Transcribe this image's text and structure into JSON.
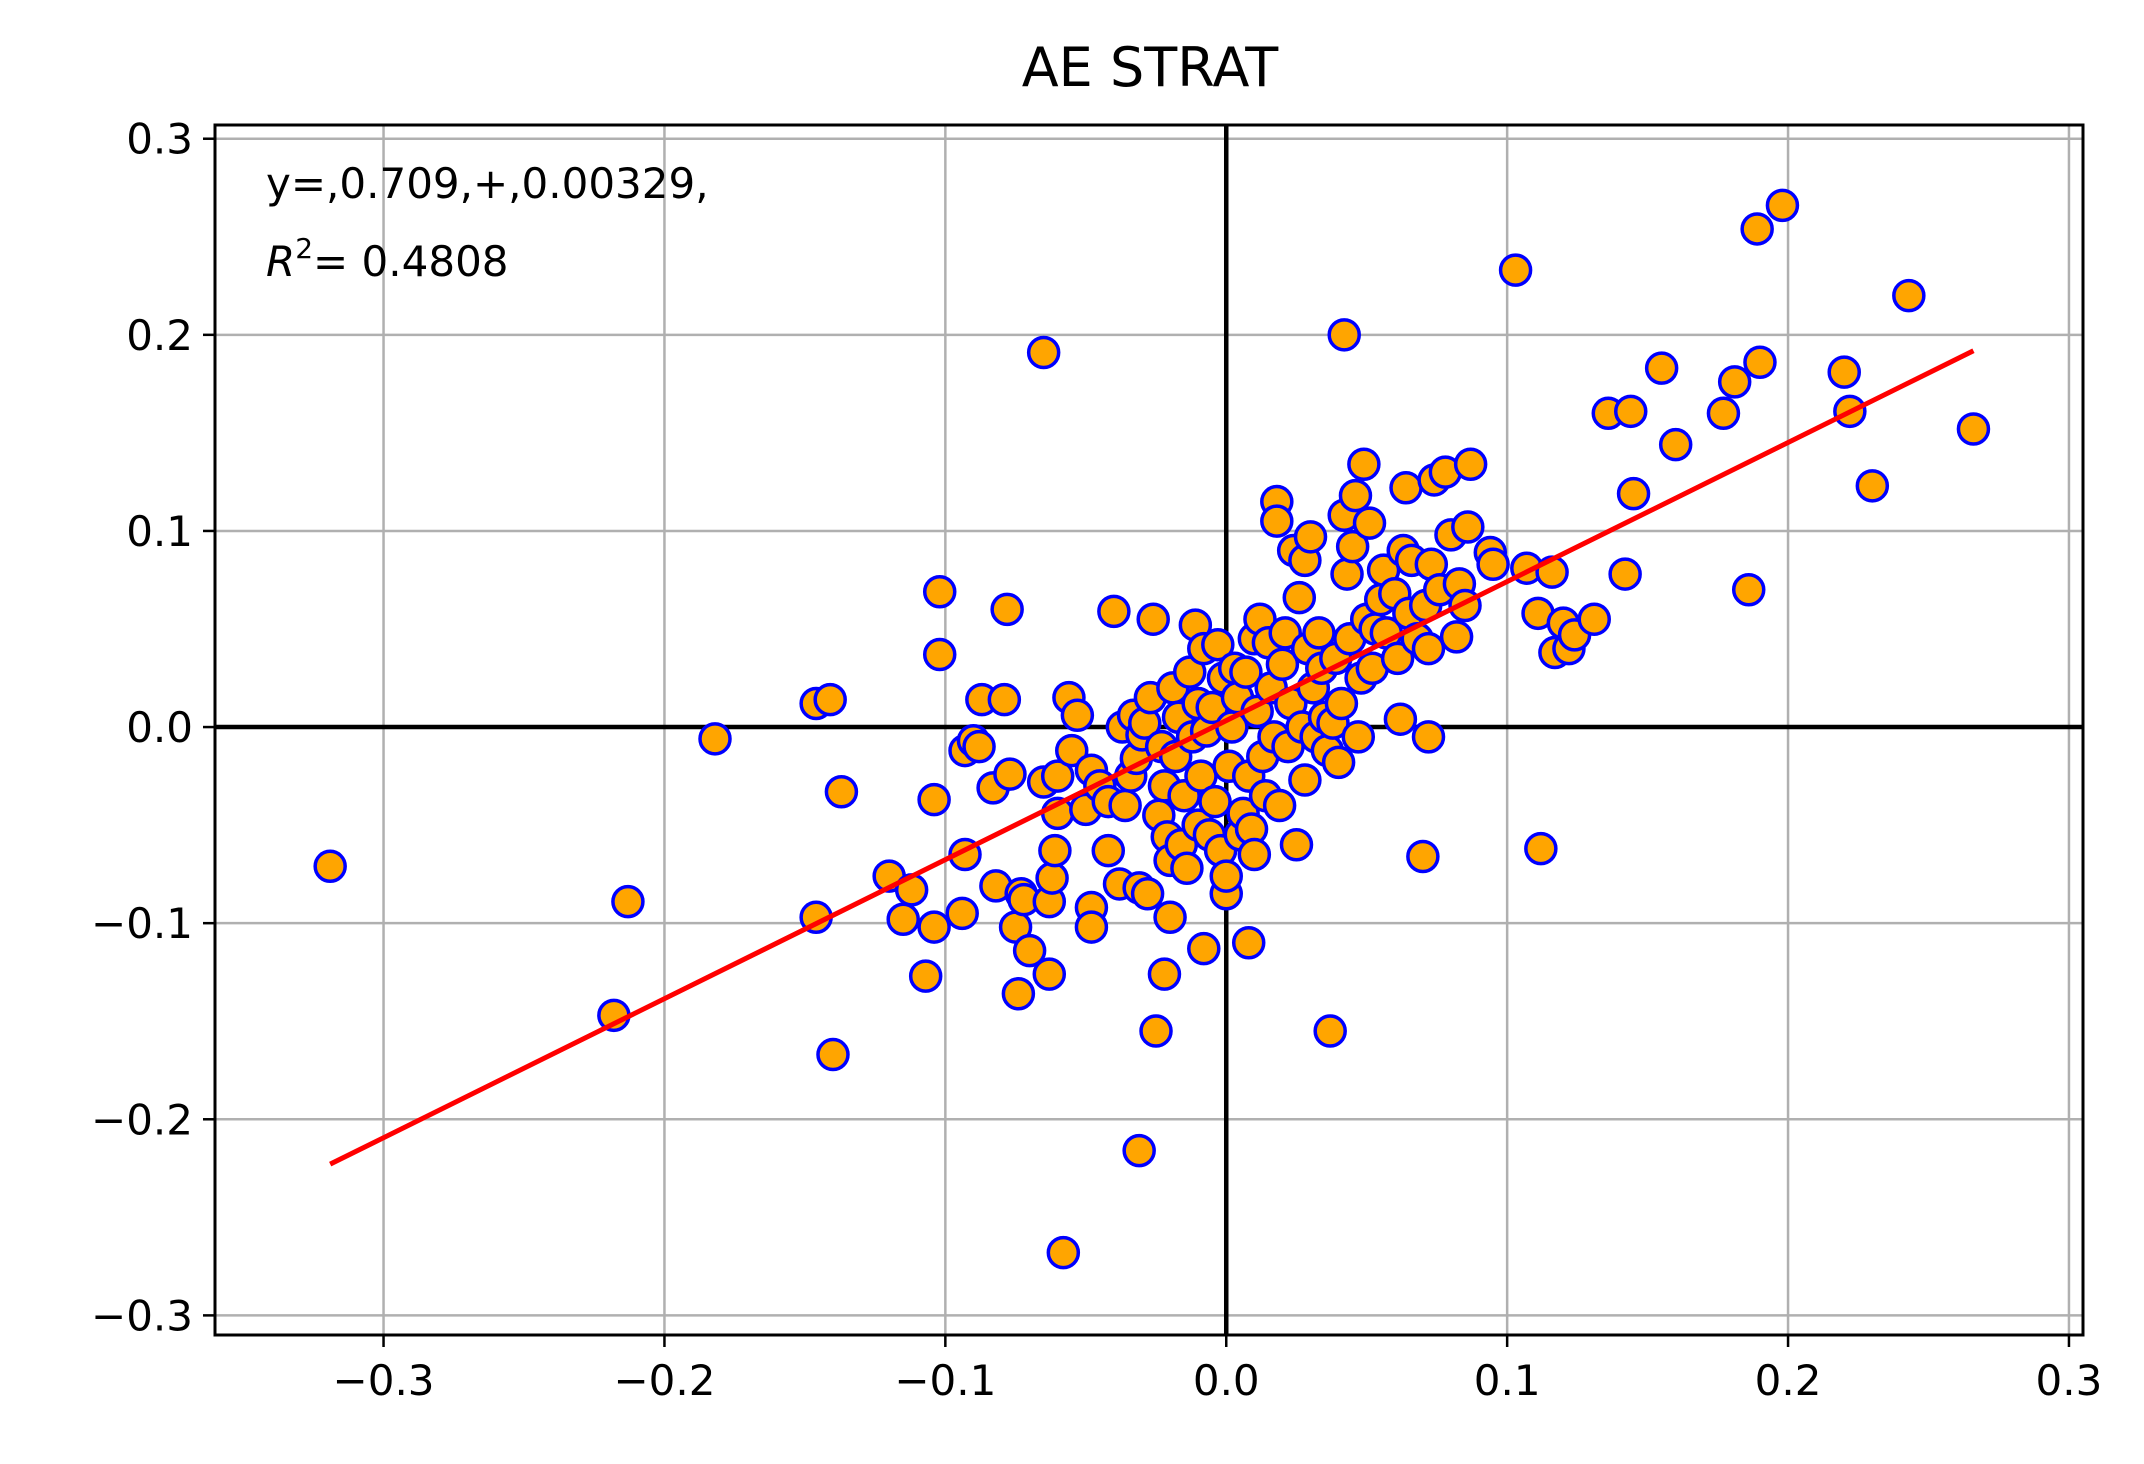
{
  "chart_data": {
    "type": "scatter",
    "title": "AE STRAT",
    "xlabel": "",
    "ylabel": "",
    "xlim": [
      -0.36,
      0.305
    ],
    "ylim": [
      -0.31,
      0.307
    ],
    "x_ticks": [
      -0.3,
      -0.2,
      -0.1,
      0.0,
      0.1,
      0.2,
      0.3
    ],
    "x_tick_labels": [
      "−0.3",
      "−0.2",
      "−0.1",
      "0.0",
      "0.1",
      "0.2",
      "0.3"
    ],
    "y_ticks": [
      -0.3,
      -0.2,
      -0.1,
      0.0,
      0.1,
      0.2,
      0.3
    ],
    "y_tick_labels": [
      "−0.3",
      "−0.2",
      "−0.1",
      "0.0",
      "0.1",
      "0.2",
      "0.3"
    ],
    "grid": true,
    "reference_lines": {
      "x": 0,
      "y": 0,
      "color": "#000000"
    },
    "annotation": {
      "equation": "y=,0.709,+,0.00329,",
      "r2_label": "R",
      "r2_exp": "2",
      "r2_value": "= 0.4808"
    },
    "fit": {
      "slope": 0.709,
      "intercept": 0.00329,
      "x_range": [
        -0.319,
        0.266
      ],
      "color": "#ff0000"
    },
    "marker": {
      "face": "#ffa500",
      "edge": "#0000ff"
    },
    "points": [
      [
        -0.319,
        -0.071
      ],
      [
        -0.218,
        -0.147
      ],
      [
        -0.213,
        -0.089
      ],
      [
        -0.182,
        -0.006
      ],
      [
        -0.146,
        0.012
      ],
      [
        -0.146,
        -0.097
      ],
      [
        -0.141,
        0.014
      ],
      [
        -0.14,
        -0.167
      ],
      [
        -0.137,
        -0.033
      ],
      [
        -0.12,
        -0.076
      ],
      [
        -0.115,
        -0.098
      ],
      [
        -0.112,
        -0.083
      ],
      [
        -0.107,
        -0.127
      ],
      [
        -0.104,
        -0.102
      ],
      [
        -0.104,
        -0.037
      ],
      [
        -0.102,
        0.037
      ],
      [
        -0.102,
        0.069
      ],
      [
        -0.094,
        -0.095
      ],
      [
        -0.093,
        -0.065
      ],
      [
        -0.093,
        -0.012
      ],
      [
        -0.09,
        -0.007
      ],
      [
        -0.088,
        -0.01
      ],
      [
        -0.087,
        0.014
      ],
      [
        -0.083,
        -0.031
      ],
      [
        -0.082,
        -0.081
      ],
      [
        -0.079,
        0.014
      ],
      [
        -0.078,
        0.06
      ],
      [
        -0.077,
        -0.024
      ],
      [
        -0.075,
        -0.102
      ],
      [
        -0.074,
        -0.136
      ],
      [
        -0.073,
        -0.085
      ],
      [
        -0.072,
        -0.088
      ],
      [
        -0.07,
        -0.114
      ],
      [
        -0.065,
        -0.028
      ],
      [
        -0.065,
        0.191
      ],
      [
        -0.063,
        -0.126
      ],
      [
        -0.063,
        -0.089
      ],
      [
        -0.062,
        -0.077
      ],
      [
        -0.061,
        -0.063
      ],
      [
        -0.06,
        -0.044
      ],
      [
        -0.06,
        -0.025
      ],
      [
        -0.058,
        -0.268
      ],
      [
        -0.056,
        0.015
      ],
      [
        -0.055,
        -0.012
      ],
      [
        -0.053,
        0.006
      ],
      [
        -0.05,
        -0.042
      ],
      [
        -0.048,
        -0.022
      ],
      [
        -0.048,
        -0.092
      ],
      [
        -0.048,
        -0.102
      ],
      [
        -0.045,
        -0.03
      ],
      [
        -0.042,
        -0.063
      ],
      [
        -0.042,
        -0.038
      ],
      [
        -0.04,
        0.059
      ],
      [
        -0.038,
        -0.08
      ],
      [
        -0.037,
        0.0
      ],
      [
        -0.036,
        -0.04
      ],
      [
        -0.034,
        -0.025
      ],
      [
        -0.033,
        0.006
      ],
      [
        -0.032,
        -0.016
      ],
      [
        -0.031,
        -0.082
      ],
      [
        -0.031,
        -0.216
      ],
      [
        -0.03,
        -0.004
      ],
      [
        -0.029,
        0.002
      ],
      [
        -0.028,
        -0.085
      ],
      [
        -0.027,
        0.015
      ],
      [
        -0.026,
        0.055
      ],
      [
        -0.025,
        -0.155
      ],
      [
        -0.024,
        -0.045
      ],
      [
        -0.023,
        -0.01
      ],
      [
        -0.022,
        -0.03
      ],
      [
        -0.022,
        -0.126
      ],
      [
        -0.021,
        -0.056
      ],
      [
        -0.02,
        -0.068
      ],
      [
        -0.02,
        -0.097
      ],
      [
        -0.019,
        0.02
      ],
      [
        -0.018,
        -0.015
      ],
      [
        -0.017,
        0.005
      ],
      [
        -0.016,
        -0.06
      ],
      [
        -0.015,
        -0.035
      ],
      [
        -0.014,
        -0.072
      ],
      [
        -0.013,
        0.028
      ],
      [
        -0.012,
        -0.005
      ],
      [
        -0.011,
        0.052
      ],
      [
        -0.01,
        -0.05
      ],
      [
        -0.01,
        0.012
      ],
      [
        -0.009,
        -0.025
      ],
      [
        -0.008,
        -0.113
      ],
      [
        -0.008,
        0.04
      ],
      [
        -0.007,
        -0.002
      ],
      [
        -0.006,
        -0.055
      ],
      [
        -0.005,
        0.01
      ],
      [
        -0.004,
        -0.038
      ],
      [
        -0.003,
        0.042
      ],
      [
        -0.002,
        -0.063
      ],
      [
        -0.001,
        0.025
      ],
      [
        0.0,
        -0.085
      ],
      [
        0.0,
        -0.076
      ],
      [
        0.001,
        -0.02
      ],
      [
        0.002,
        0.0
      ],
      [
        0.003,
        0.03
      ],
      [
        0.004,
        0.015
      ],
      [
        0.005,
        -0.055
      ],
      [
        0.006,
        -0.044
      ],
      [
        0.007,
        0.028
      ],
      [
        0.008,
        -0.11
      ],
      [
        0.008,
        -0.025
      ],
      [
        0.009,
        -0.052
      ],
      [
        0.01,
        0.045
      ],
      [
        0.01,
        -0.065
      ],
      [
        0.011,
        0.008
      ],
      [
        0.012,
        0.055
      ],
      [
        0.013,
        -0.015
      ],
      [
        0.014,
        -0.035
      ],
      [
        0.015,
        0.043
      ],
      [
        0.016,
        0.02
      ],
      [
        0.017,
        -0.005
      ],
      [
        0.018,
        0.115
      ],
      [
        0.018,
        0.105
      ],
      [
        0.019,
        -0.04
      ],
      [
        0.02,
        0.032
      ],
      [
        0.021,
        0.048
      ],
      [
        0.022,
        -0.01
      ],
      [
        0.023,
        0.012
      ],
      [
        0.024,
        0.09
      ],
      [
        0.025,
        -0.06
      ],
      [
        0.026,
        0.066
      ],
      [
        0.027,
        0.0
      ],
      [
        0.028,
        0.085
      ],
      [
        0.028,
        -0.027
      ],
      [
        0.029,
        0.04
      ],
      [
        0.03,
        0.097
      ],
      [
        0.031,
        0.02
      ],
      [
        0.032,
        -0.005
      ],
      [
        0.033,
        0.048
      ],
      [
        0.034,
        0.03
      ],
      [
        0.035,
        0.005
      ],
      [
        0.036,
        -0.012
      ],
      [
        0.037,
        -0.155
      ],
      [
        0.038,
        0.002
      ],
      [
        0.039,
        0.035
      ],
      [
        0.04,
        -0.018
      ],
      [
        0.041,
        0.012
      ],
      [
        0.042,
        0.2
      ],
      [
        0.042,
        0.108
      ],
      [
        0.043,
        0.078
      ],
      [
        0.044,
        0.045
      ],
      [
        0.045,
        0.092
      ],
      [
        0.046,
        0.118
      ],
      [
        0.047,
        -0.005
      ],
      [
        0.048,
        0.025
      ],
      [
        0.049,
        0.134
      ],
      [
        0.05,
        0.055
      ],
      [
        0.051,
        0.104
      ],
      [
        0.052,
        0.03
      ],
      [
        0.053,
        0.05
      ],
      [
        0.055,
        0.065
      ],
      [
        0.056,
        0.08
      ],
      [
        0.057,
        0.048
      ],
      [
        0.06,
        0.068
      ],
      [
        0.061,
        0.035
      ],
      [
        0.062,
        0.004
      ],
      [
        0.063,
        0.09
      ],
      [
        0.064,
        0.122
      ],
      [
        0.065,
        0.058
      ],
      [
        0.066,
        0.085
      ],
      [
        0.068,
        0.045
      ],
      [
        0.07,
        -0.066
      ],
      [
        0.071,
        0.062
      ],
      [
        0.072,
        0.04
      ],
      [
        0.072,
        -0.005
      ],
      [
        0.073,
        0.083
      ],
      [
        0.074,
        0.126
      ],
      [
        0.076,
        0.07
      ],
      [
        0.078,
        0.13
      ],
      [
        0.08,
        0.098
      ],
      [
        0.082,
        0.046
      ],
      [
        0.083,
        0.073
      ],
      [
        0.085,
        0.062
      ],
      [
        0.086,
        0.102
      ],
      [
        0.087,
        0.134
      ],
      [
        0.094,
        0.089
      ],
      [
        0.095,
        0.083
      ],
      [
        0.103,
        0.233
      ],
      [
        0.107,
        0.081
      ],
      [
        0.111,
        0.058
      ],
      [
        0.112,
        -0.062
      ],
      [
        0.116,
        0.079
      ],
      [
        0.117,
        0.038
      ],
      [
        0.12,
        0.053
      ],
      [
        0.122,
        0.04
      ],
      [
        0.124,
        0.047
      ],
      [
        0.131,
        0.055
      ],
      [
        0.136,
        0.16
      ],
      [
        0.142,
        0.078
      ],
      [
        0.144,
        0.161
      ],
      [
        0.145,
        0.119
      ],
      [
        0.155,
        0.183
      ],
      [
        0.16,
        0.144
      ],
      [
        0.177,
        0.16
      ],
      [
        0.181,
        0.176
      ],
      [
        0.186,
        0.07
      ],
      [
        0.189,
        0.254
      ],
      [
        0.19,
        0.186
      ],
      [
        0.198,
        0.266
      ],
      [
        0.22,
        0.181
      ],
      [
        0.222,
        0.161
      ],
      [
        0.23,
        0.123
      ],
      [
        0.243,
        0.22
      ],
      [
        0.266,
        0.152
      ]
    ]
  }
}
